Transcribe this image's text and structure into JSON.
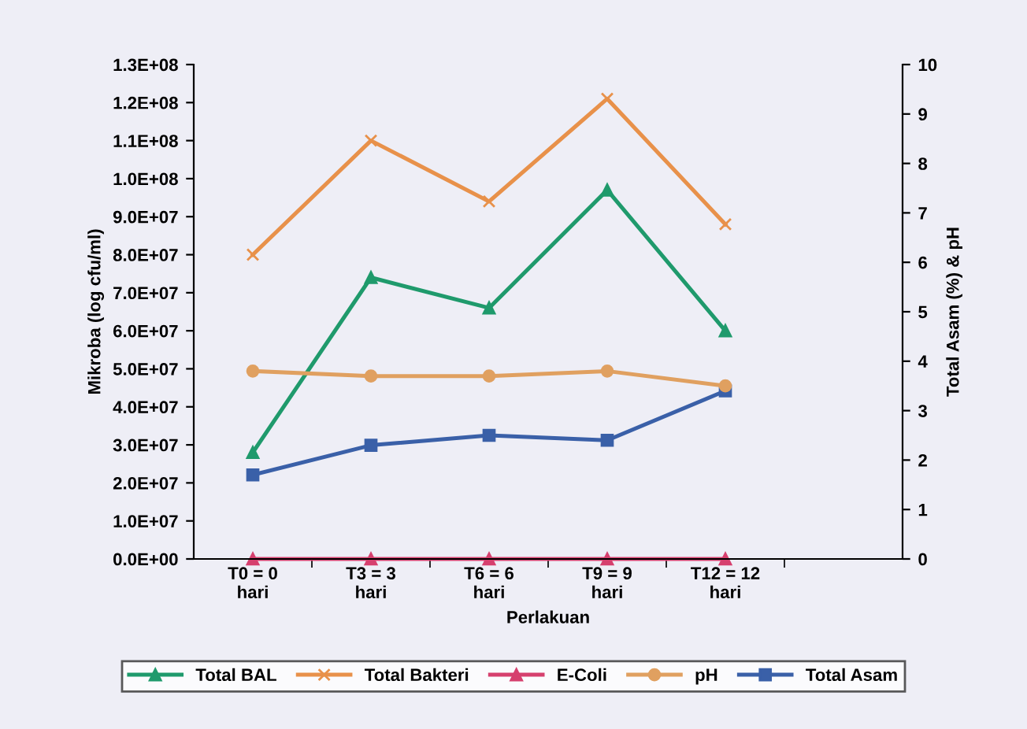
{
  "chart_data": {
    "type": "line",
    "xlabel": "Perlakuan",
    "ylabel": "Mikroba (log cfu/ml)",
    "y2label": "Total Asam (%) & pH",
    "categories": [
      "T0 = 0\nhari",
      "T3 = 3\nhari",
      "T6 = 6\nhari",
      "T9 = 9\nhari",
      "T12 = 12\nhari",
      null
    ],
    "series": [
      {
        "name": "Total BAL",
        "color": "#1f9a6c",
        "marker": "triangle",
        "values": [
          28000000.0,
          74000000.0,
          66000000.0,
          97000000.0,
          60000000.0,
          null
        ]
      },
      {
        "name": "Total Bakteri",
        "color": "#e8914a",
        "marker": "cross",
        "values": [
          80000000.0,
          110000000.0,
          94000000.0,
          121000000.0,
          88000000.0,
          null
        ]
      },
      {
        "name": "E-Coli",
        "color": "#d6406e",
        "marker": "triangle",
        "values": [
          0,
          0,
          0,
          0,
          0,
          null
        ]
      },
      {
        "name": "pH",
        "color": "#e0a060",
        "marker": "circle",
        "axis": "y2",
        "values": [
          3.8,
          3.7,
          3.7,
          3.8,
          3.5,
          null
        ]
      },
      {
        "name": "Total Asam",
        "color": "#3a60a8",
        "marker": "square",
        "axis": "y2",
        "values": [
          1.7,
          2.3,
          2.5,
          2.4,
          3.4,
          null
        ]
      }
    ],
    "ylim": [
      0,
      130000000.0
    ],
    "yticks": [
      {
        "value": 0,
        "label": "0.0E+00"
      },
      {
        "value": 10000000.0,
        "label": "1.0E+07"
      },
      {
        "value": 20000000.0,
        "label": "2.0E+07"
      },
      {
        "value": 30000000.0,
        "label": "3.0E+07"
      },
      {
        "value": 40000000.0,
        "label": "4.0E+07"
      },
      {
        "value": 50000000.0,
        "label": "5.0E+07"
      },
      {
        "value": 60000000.0,
        "label": "6.0E+07"
      },
      {
        "value": 70000000.0,
        "label": "7.0E+07"
      },
      {
        "value": 80000000.0,
        "label": "8.0E+07"
      },
      {
        "value": 90000000.0,
        "label": "9.0E+07"
      },
      {
        "value": 100000000.0,
        "label": "1.0E+08"
      },
      {
        "value": 110000000.0,
        "label": "1.1E+08"
      },
      {
        "value": 120000000.0,
        "label": "1.2E+08"
      },
      {
        "value": 130000000.0,
        "label": "1.3E+08"
      }
    ],
    "y2lim": [
      0,
      10
    ],
    "y2ticks": [
      0,
      1,
      2,
      3,
      4,
      5,
      6,
      7,
      8,
      9,
      10
    ],
    "legend": "bottom",
    "grid": false
  }
}
